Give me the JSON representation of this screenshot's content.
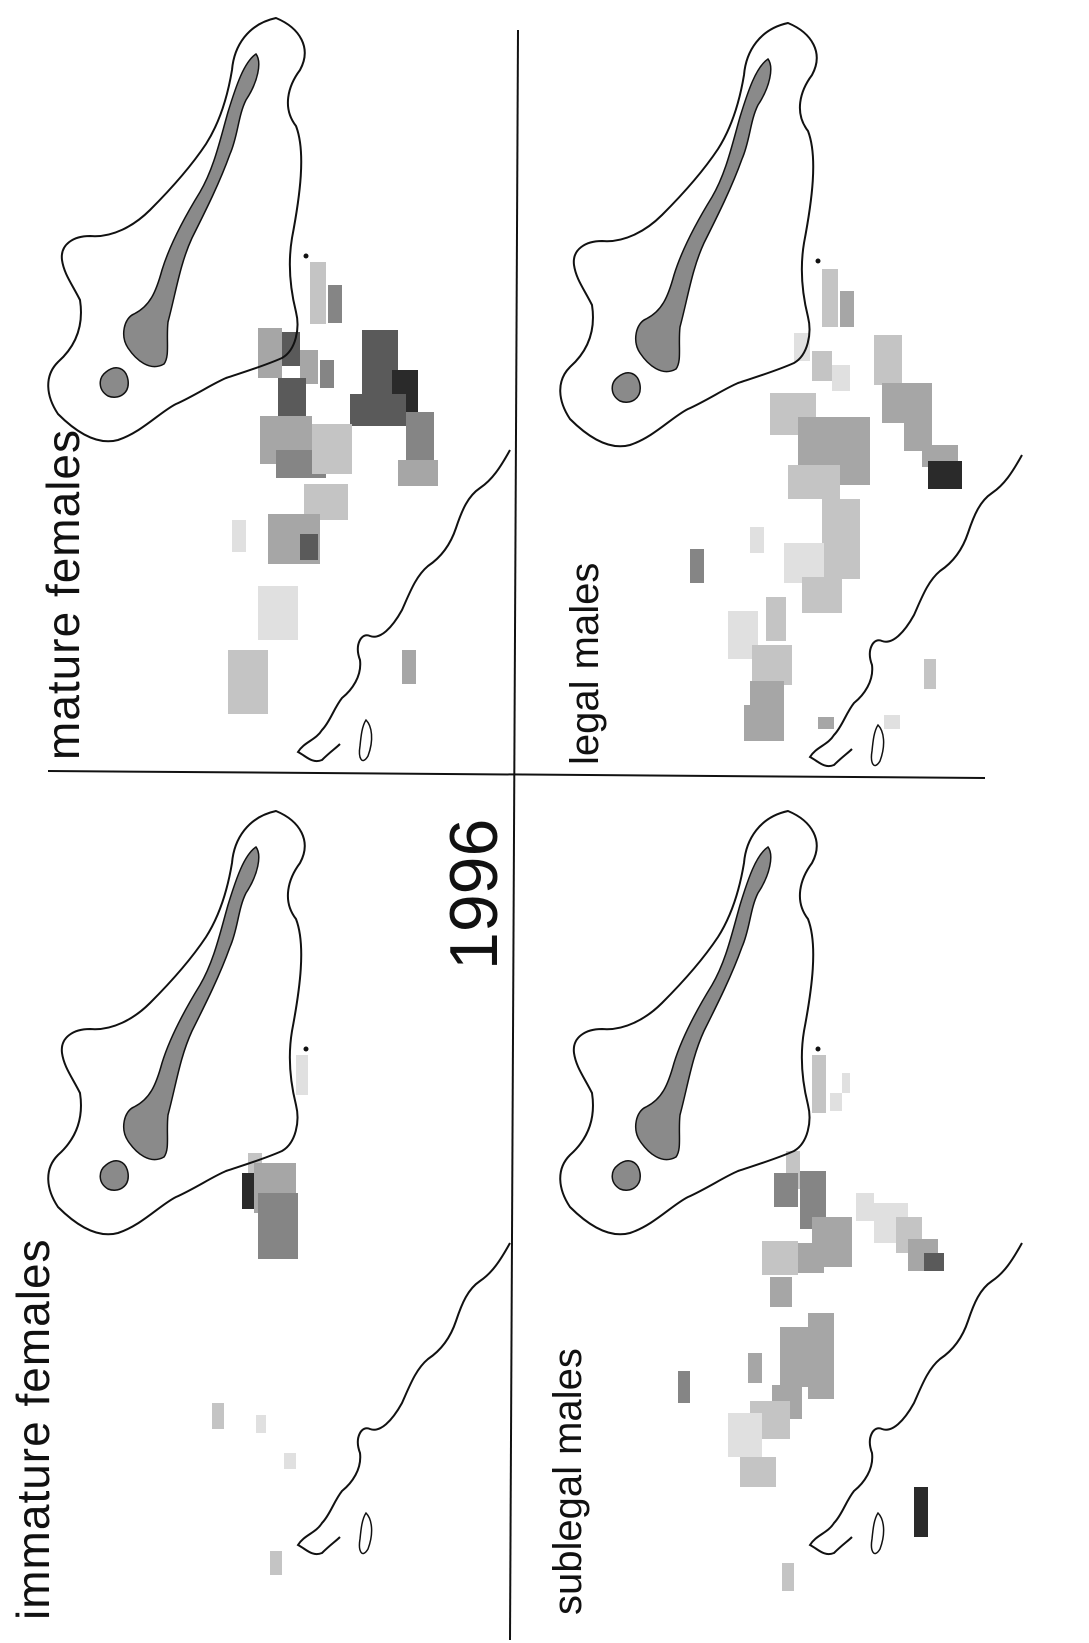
{
  "figure": {
    "year": "1996",
    "panels": [
      {
        "id": "mature",
        "label": "mature females"
      },
      {
        "id": "legal",
        "label": "legal males"
      },
      {
        "id": "immature",
        "label": "immature females"
      },
      {
        "id": "sublegal",
        "label": "sublegal males"
      }
    ]
  },
  "colors": {
    "coastline": "#111111",
    "island_fill": "#8a8a8a",
    "grid_shades": [
      "#e0e0e0",
      "#c4c4c4",
      "#a6a6a6",
      "#858585",
      "#5a5a5a",
      "#2a2a2a"
    ]
  }
}
